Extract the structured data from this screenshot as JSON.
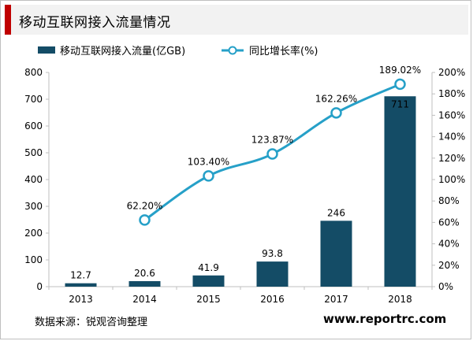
{
  "header": {
    "title": "移动互联网接入流量情况"
  },
  "footer": {
    "source": "数据来源：锐观咨询整理",
    "website": "www.reportrc.com"
  },
  "colors": {
    "bar": "#144c66",
    "line": "#26a0c8",
    "accent": "#c00000"
  },
  "chart_data": {
    "type": "bar",
    "categories": [
      "2013",
      "2014",
      "2015",
      "2016",
      "2017",
      "2018"
    ],
    "series": [
      {
        "name": "移动互联网接入流量(亿GB)",
        "type": "bar",
        "axis": "left",
        "values": [
          12.7,
          20.6,
          41.9,
          93.8,
          246,
          711
        ],
        "labels": [
          "12.7",
          "20.6",
          "41.9",
          "93.8",
          "246",
          "711"
        ]
      },
      {
        "name": "同比增长率(%)",
        "type": "line",
        "axis": "right",
        "values": [
          null,
          62.2,
          103.4,
          123.87,
          162.26,
          189.02
        ],
        "labels": [
          "",
          "62.20%",
          "103.40%",
          "123.87%",
          "162.26%",
          "189.02%"
        ]
      }
    ],
    "y_left": {
      "ylim": [
        0,
        800
      ],
      "ticks": [
        "0",
        "100",
        "200",
        "300",
        "400",
        "500",
        "600",
        "700",
        "800"
      ]
    },
    "y_right": {
      "ylim": [
        0,
        200
      ],
      "ticks": [
        "0%",
        "20%",
        "40%",
        "60%",
        "80%",
        "100%",
        "120%",
        "140%",
        "160%",
        "180%",
        "200%"
      ]
    },
    "legend": "top",
    "grid": false
  }
}
